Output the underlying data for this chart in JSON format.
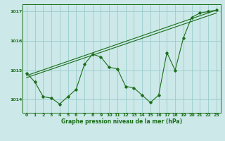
{
  "title": "Graphe pression niveau de la mer (hPa)",
  "bg_color": "#cce8e8",
  "grid_color": "#99cccc",
  "line_color": "#1a6e1a",
  "xlim": [
    -0.5,
    23.5
  ],
  "ylim": [
    1013.55,
    1017.25
  ],
  "yticks": [
    1014,
    1015,
    1016,
    1017
  ],
  "xticks": [
    0,
    1,
    2,
    3,
    4,
    5,
    6,
    7,
    8,
    9,
    10,
    11,
    12,
    13,
    14,
    15,
    16,
    17,
    18,
    19,
    20,
    21,
    22,
    23
  ],
  "series_main": {
    "x": [
      0,
      1,
      2,
      3,
      4,
      5,
      6,
      7,
      8,
      9,
      10,
      11,
      12,
      13,
      14,
      15,
      16,
      17,
      18,
      19,
      20,
      21,
      22,
      23
    ],
    "y": [
      1014.9,
      1014.6,
      1014.1,
      1014.05,
      1013.85,
      1014.1,
      1014.35,
      1015.2,
      1015.55,
      1015.45,
      1015.1,
      1015.05,
      1014.45,
      1014.4,
      1014.15,
      1013.9,
      1014.15,
      1015.6,
      1015.0,
      1016.1,
      1016.8,
      1016.95,
      1017.0,
      1017.05
    ]
  },
  "trend1": {
    "x": [
      0,
      23
    ],
    "y": [
      1014.75,
      1016.95
    ]
  },
  "trend2": {
    "x": [
      0,
      23
    ],
    "y": [
      1014.82,
      1017.05
    ]
  }
}
